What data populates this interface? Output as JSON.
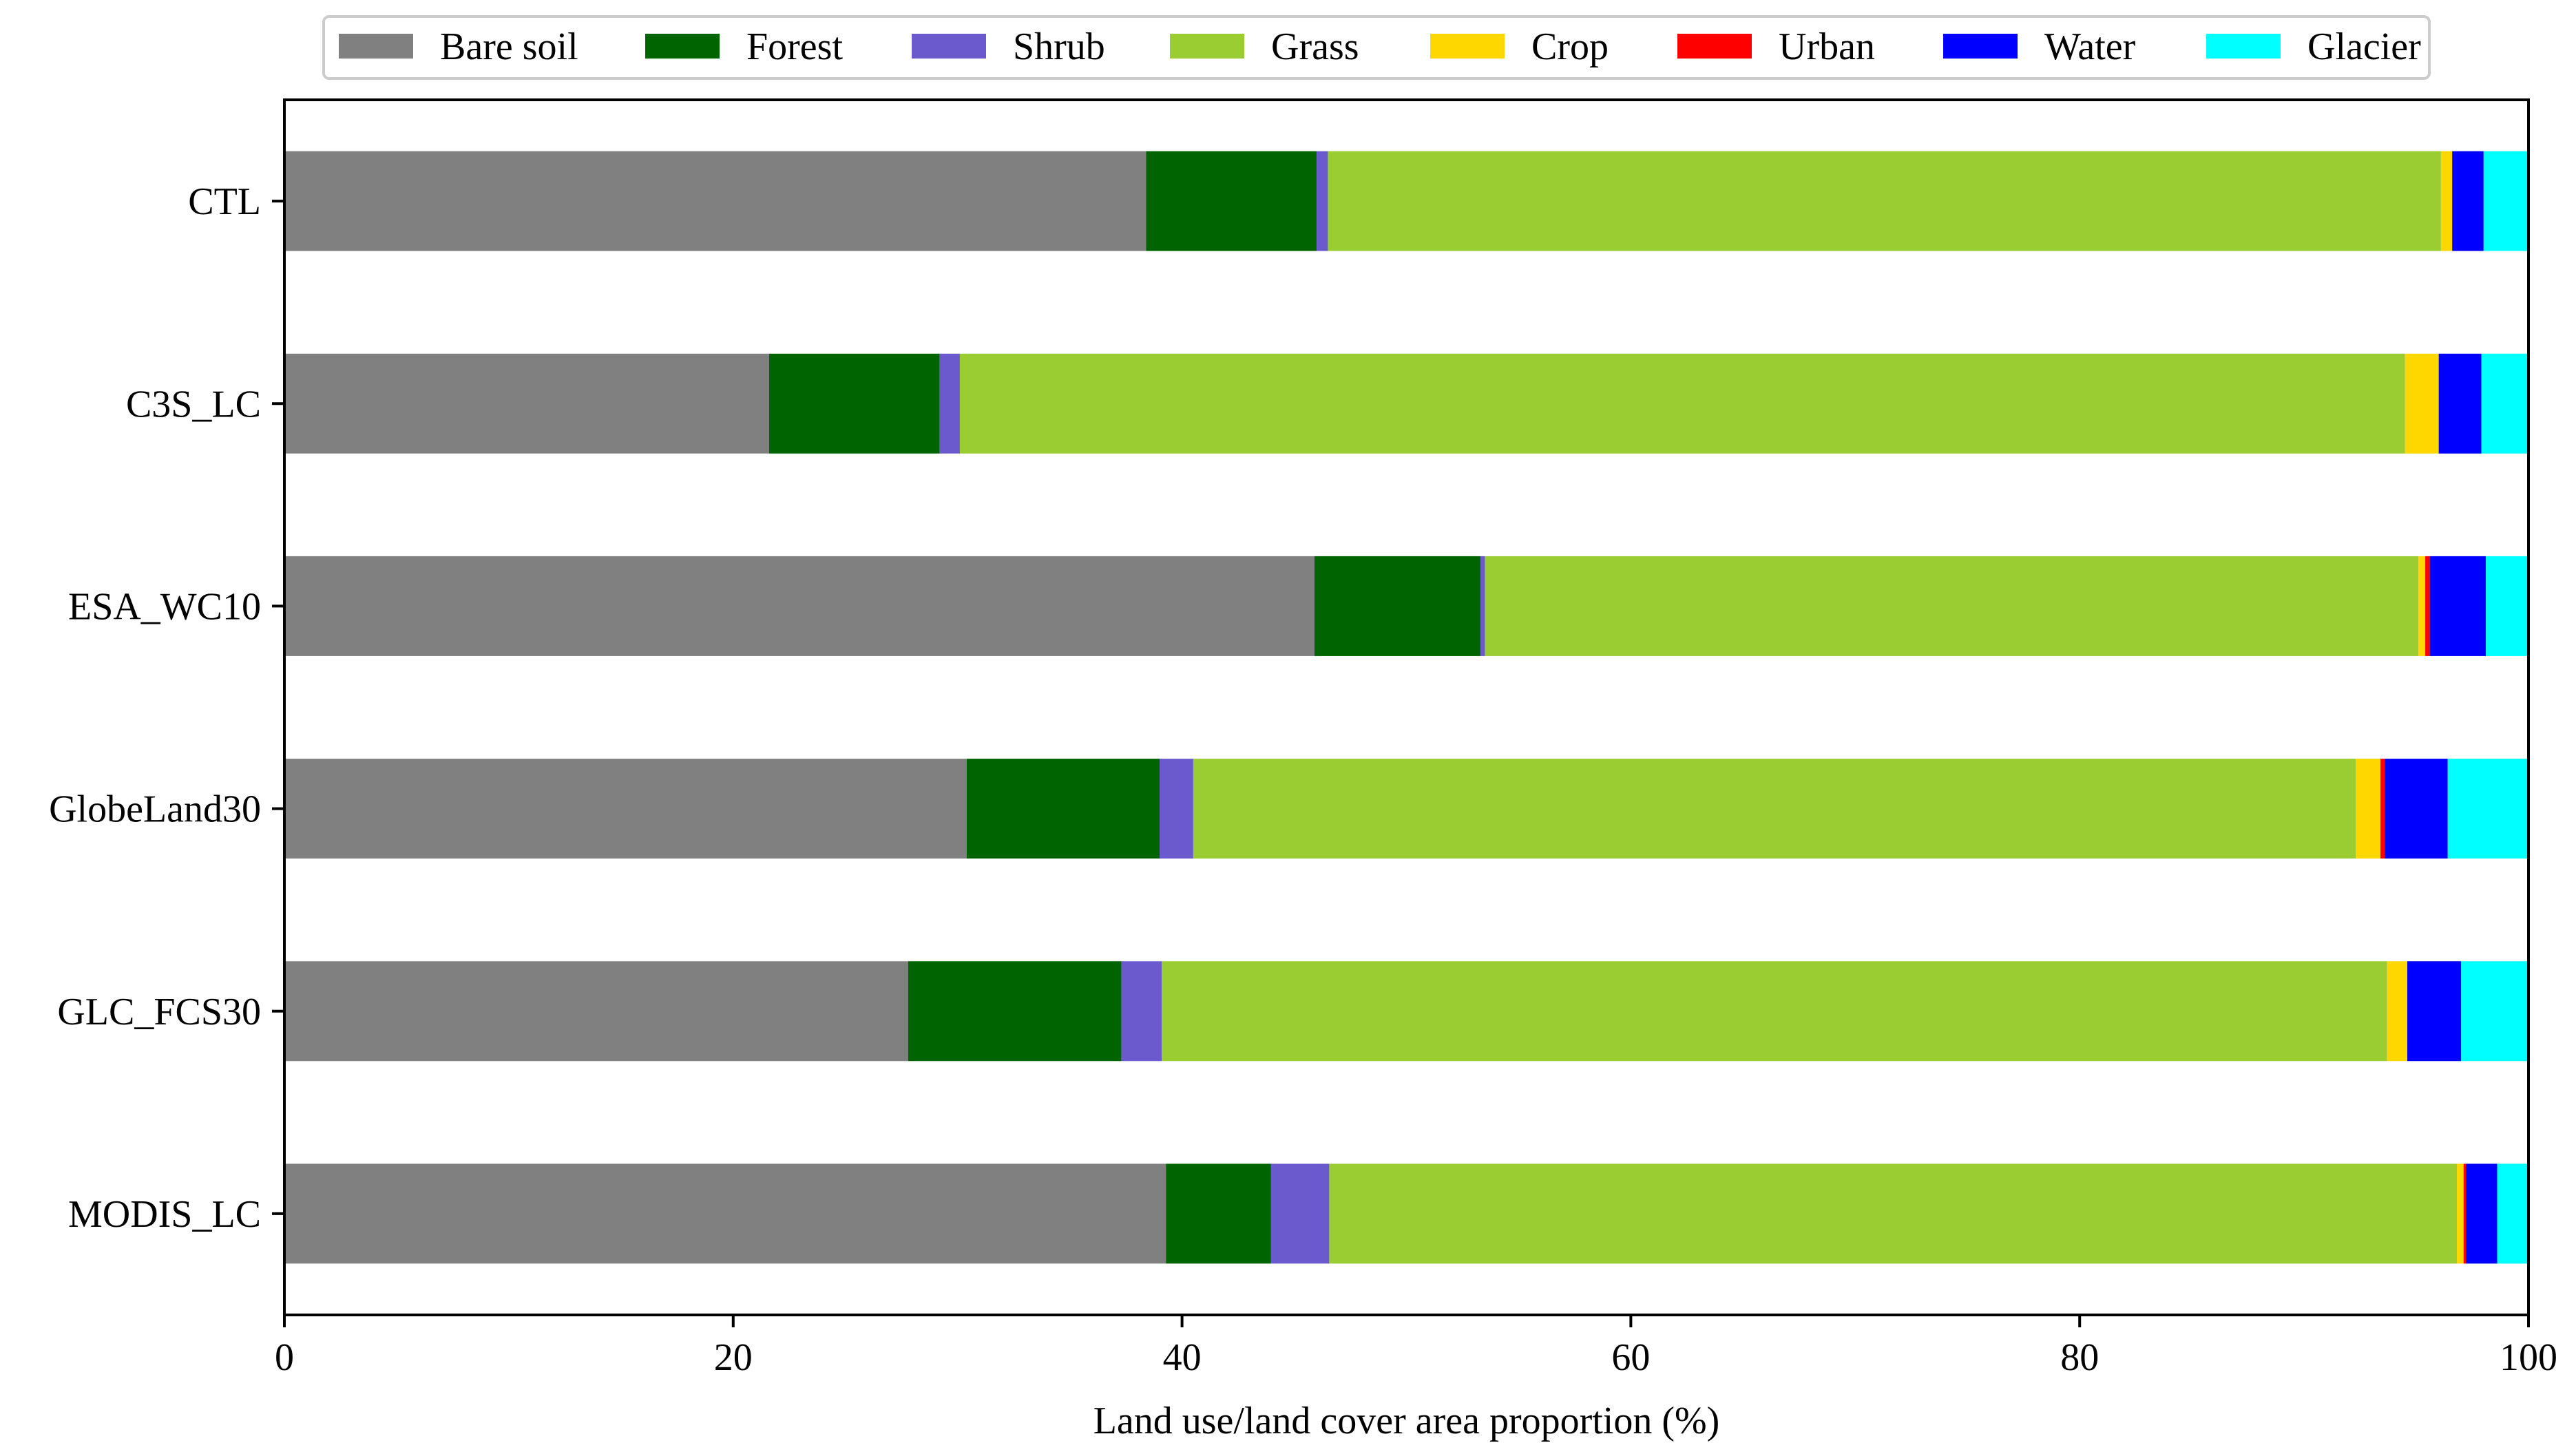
{
  "chart_data": {
    "type": "bar",
    "orientation": "horizontal",
    "stacked": true,
    "title": "",
    "xlabel": "Land use/land cover area proportion (%)",
    "ylabel": "",
    "xlim": [
      0,
      100
    ],
    "xticks": [
      0,
      20,
      40,
      60,
      80,
      100
    ],
    "grid": false,
    "legend_position": "top",
    "categories": [
      "CTL",
      "C3S_LC",
      "ESA_WC10",
      "GlobeLand30",
      "GLC_FCS30",
      "MODIS_LC"
    ],
    "series": [
      {
        "name": "Bare soil",
        "color": "#808080",
        "values": [
          38.4,
          21.6,
          45.9,
          30.4,
          27.8,
          39.4
        ]
      },
      {
        "name": "Forest",
        "color": "#006400",
        "values": [
          7.6,
          7.6,
          7.4,
          8.6,
          9.5,
          4.7
        ]
      },
      {
        "name": "Shrub",
        "color": "#6A5ACD",
        "values": [
          0.5,
          0.9,
          0.2,
          1.5,
          1.8,
          2.6
        ]
      },
      {
        "name": "Grass",
        "color": "#9ACD32",
        "values": [
          49.6,
          64.4,
          41.6,
          51.8,
          54.6,
          50.4
        ]
      },
      {
        "name": "Crop",
        "color": "#FFD700",
        "values": [
          0.5,
          1.5,
          0.3,
          1.1,
          0.9,
          0.3
        ]
      },
      {
        "name": "Urban",
        "color": "#FF0000",
        "values": [
          0.0,
          0.0,
          0.2,
          0.2,
          0.0,
          0.1
        ]
      },
      {
        "name": "Water",
        "color": "#0000FF",
        "values": [
          1.4,
          1.9,
          2.5,
          2.8,
          2.4,
          1.4
        ]
      },
      {
        "name": "Glacier",
        "color": "#00FFFF",
        "values": [
          2.0,
          2.1,
          1.9,
          3.6,
          3.0,
          1.4
        ]
      }
    ]
  }
}
